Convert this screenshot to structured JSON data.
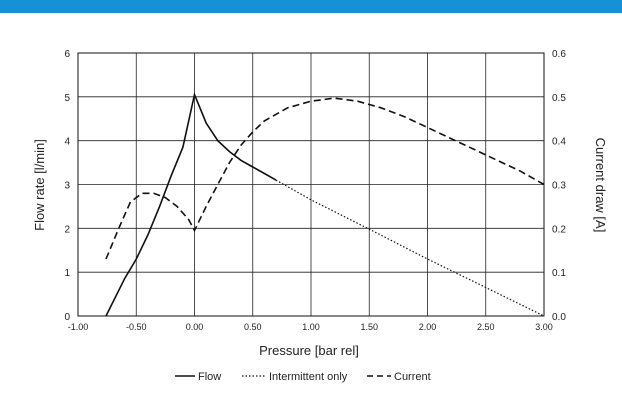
{
  "colors": {
    "top_bar": "#1591d6",
    "line": "#111111",
    "grid": "#222222"
  },
  "chart_data": {
    "type": "line",
    "xlabel": "Pressure [bar rel]",
    "ylabel": "Flow rate [l/min]",
    "y2label": "Current draw [A]",
    "xlim": [
      -1.0,
      3.0
    ],
    "ylim": [
      0,
      6
    ],
    "y2lim": [
      0,
      0.6
    ],
    "x_ticks": [
      "-1.00",
      "-0.50",
      "0.00",
      "0.50",
      "1.00",
      "1.50",
      "2.00",
      "2.50",
      "3.00"
    ],
    "y_ticks": [
      "0",
      "1",
      "2",
      "3",
      "4",
      "5",
      "6"
    ],
    "y2_ticks": [
      "0.0",
      "0.1",
      "0.2",
      "0.3",
      "0.4",
      "0.5",
      "0.6"
    ],
    "grid": true,
    "legend_position": "bottom",
    "series": [
      {
        "name": "Flow",
        "axis": "left",
        "style": "solid",
        "points": [
          [
            -0.76,
            0.0
          ],
          [
            -0.6,
            0.85
          ],
          [
            -0.5,
            1.3
          ],
          [
            -0.4,
            1.85
          ],
          [
            -0.3,
            2.5
          ],
          [
            -0.2,
            3.2
          ],
          [
            -0.1,
            3.85
          ],
          [
            0.0,
            5.05
          ],
          [
            0.1,
            4.4
          ],
          [
            0.2,
            4.0
          ],
          [
            0.3,
            3.75
          ],
          [
            0.4,
            3.55
          ],
          [
            0.5,
            3.4
          ],
          [
            0.6,
            3.25
          ],
          [
            0.7,
            3.1
          ]
        ]
      },
      {
        "name": "Intermittent only",
        "axis": "left",
        "style": "dotted",
        "points": [
          [
            0.7,
            3.1
          ],
          [
            1.0,
            2.65
          ],
          [
            1.5,
            1.98
          ],
          [
            2.0,
            1.3
          ],
          [
            2.5,
            0.65
          ],
          [
            3.0,
            0.0
          ]
        ]
      },
      {
        "name": "Current",
        "axis": "right",
        "style": "dashed",
        "points": [
          [
            -0.76,
            0.13
          ],
          [
            -0.65,
            0.2
          ],
          [
            -0.55,
            0.26
          ],
          [
            -0.45,
            0.28
          ],
          [
            -0.35,
            0.28
          ],
          [
            -0.25,
            0.27
          ],
          [
            -0.15,
            0.25
          ],
          [
            -0.05,
            0.22
          ],
          [
            0.0,
            0.195
          ],
          [
            0.1,
            0.25
          ],
          [
            0.2,
            0.3
          ],
          [
            0.3,
            0.35
          ],
          [
            0.4,
            0.39
          ],
          [
            0.5,
            0.42
          ],
          [
            0.6,
            0.445
          ],
          [
            0.8,
            0.475
          ],
          [
            1.0,
            0.49
          ],
          [
            1.2,
            0.497
          ],
          [
            1.4,
            0.49
          ],
          [
            1.6,
            0.475
          ],
          [
            1.8,
            0.455
          ],
          [
            2.0,
            0.43
          ],
          [
            2.2,
            0.405
          ],
          [
            2.4,
            0.38
          ],
          [
            2.6,
            0.355
          ],
          [
            2.8,
            0.33
          ],
          [
            3.0,
            0.3
          ]
        ]
      }
    ]
  }
}
